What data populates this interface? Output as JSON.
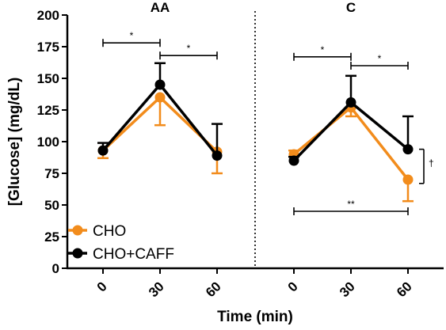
{
  "chart_data": {
    "type": "line",
    "xlabel": "Time (min)",
    "ylabel": "[Glucose] (mg/dL)",
    "ylim": [
      0,
      200
    ],
    "yticks": [
      0,
      25,
      50,
      75,
      100,
      125,
      150,
      175,
      200
    ],
    "x": [
      0,
      30,
      60
    ],
    "grid": false,
    "legend_position": "bottom-left",
    "colors": {
      "CHO": "#F28C1C",
      "CHO+CAFF": "#000000"
    },
    "panels": [
      {
        "title": "AA",
        "series": [
          {
            "name": "CHO",
            "values": [
              93,
              135,
              92
            ],
            "errors": [
              6,
              22,
              17
            ],
            "error_dir": [
              -1,
              -1,
              -1
            ]
          },
          {
            "name": "CHO+CAFF",
            "values": [
              93,
              145,
              89
            ],
            "errors": [
              6,
              17,
              25
            ],
            "error_dir": [
              1,
              1,
              1
            ]
          }
        ],
        "significance": [
          {
            "from": 0,
            "to": 30,
            "label": "*",
            "y": 178
          },
          {
            "from": 30,
            "to": 60,
            "label": "*",
            "y": 168
          }
        ]
      },
      {
        "title": "C",
        "series": [
          {
            "name": "CHO",
            "values": [
              90,
              127,
              70
            ],
            "errors": [
              3,
              7,
              17
            ],
            "error_dir": [
              1,
              -1,
              -1
            ]
          },
          {
            "name": "CHO+CAFF",
            "values": [
              85,
              131,
              94
            ],
            "errors": [
              3,
              21,
              26
            ],
            "error_dir": [
              1,
              1,
              1
            ]
          }
        ],
        "significance": [
          {
            "from": 0,
            "to": 30,
            "label": "*",
            "y": 167
          },
          {
            "from": 30,
            "to": 60,
            "label": "*",
            "y": 160
          },
          {
            "from": 0,
            "to": 60,
            "label": "**",
            "y": 45
          }
        ],
        "annotations": [
          {
            "label": "†",
            "at_x": 60,
            "y_from": 67,
            "y_to": 94
          }
        ]
      }
    ]
  }
}
